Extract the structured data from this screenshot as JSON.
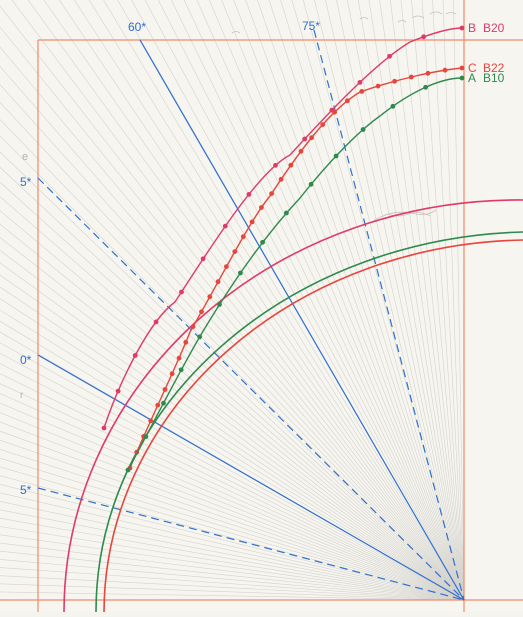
{
  "angle_labels": {
    "top_60": "60*",
    "top_75": "75*",
    "left_45": "5*",
    "left_30": "0*",
    "left_15": "5*"
  },
  "pencil_notes": {
    "n1": "e",
    "n2": "r"
  },
  "curves": [
    {
      "letter": "B",
      "name": "B20",
      "color": "#e03a66"
    },
    {
      "letter": "C",
      "name": "B22",
      "color": "#e8453c"
    },
    {
      "letter": "A",
      "name": "B10",
      "color": "#2f8a4e"
    }
  ],
  "colors": {
    "frame": "#f08a6a",
    "ray": "#c9c9c9",
    "blue": "#2f6fcf",
    "pencil": "#b9b3a8"
  }
}
